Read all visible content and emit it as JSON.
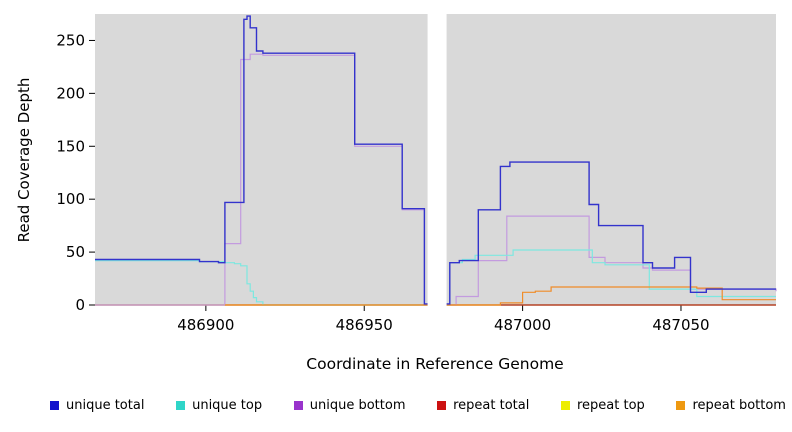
{
  "chart_data": {
    "type": "line",
    "line_style": "step-after",
    "title": "",
    "xlabel": "Coordinate in Reference Genome",
    "ylabel": "Read Coverage Depth",
    "xlim": [
      486865,
      487080
    ],
    "ylim": [
      0,
      275
    ],
    "x_ticks": [
      486900,
      486950,
      487000,
      487050
    ],
    "y_ticks": [
      0,
      50,
      100,
      150,
      200,
      250
    ],
    "panel_color": "#d9d9d9",
    "gap_region": [
      486970,
      486976
    ],
    "grid": false,
    "legend_position": "bottom",
    "draw_order": [
      "repeat top",
      "repeat total",
      "unique bottom",
      "unique top",
      "repeat bottom",
      "unique total"
    ],
    "series": [
      {
        "name": "unique total",
        "line_color": "#3333cc",
        "legend_color": "#1111cc",
        "points": [
          [
            486865,
            43
          ],
          [
            486898,
            41
          ],
          [
            486904,
            40
          ],
          [
            486906,
            97
          ],
          [
            486912,
            270
          ],
          [
            486913,
            273
          ],
          [
            486914,
            262
          ],
          [
            486916,
            240
          ],
          [
            486918,
            238
          ],
          [
            486947,
            152
          ],
          [
            486962,
            91
          ],
          [
            486969,
            1
          ],
          [
            486977,
            40
          ],
          [
            486980,
            42
          ],
          [
            486986,
            90
          ],
          [
            486993,
            131
          ],
          [
            486996,
            135
          ],
          [
            487021,
            95
          ],
          [
            487024,
            75
          ],
          [
            487038,
            40
          ],
          [
            487041,
            35
          ],
          [
            487048,
            45
          ],
          [
            487053,
            12
          ],
          [
            487058,
            15
          ],
          [
            487080,
            15
          ]
        ]
      },
      {
        "name": "unique top",
        "line_color": "#7de8e0",
        "legend_color": "#2fd5c8",
        "points": [
          [
            486865,
            42
          ],
          [
            486898,
            41
          ],
          [
            486906,
            40
          ],
          [
            486909,
            39
          ],
          [
            486911,
            37
          ],
          [
            486913,
            20
          ],
          [
            486914,
            13
          ],
          [
            486915,
            7
          ],
          [
            486916,
            3
          ],
          [
            486918,
            0
          ],
          [
            486977,
            40
          ],
          [
            486981,
            43
          ],
          [
            486985,
            47
          ],
          [
            486997,
            52
          ],
          [
            487022,
            40
          ],
          [
            487026,
            38
          ],
          [
            487040,
            15
          ],
          [
            487055,
            8
          ],
          [
            487080,
            8
          ]
        ]
      },
      {
        "name": "unique bottom",
        "line_color": "#c39bdf",
        "legend_color": "#9933cc",
        "points": [
          [
            486865,
            0
          ],
          [
            486906,
            58
          ],
          [
            486911,
            232
          ],
          [
            486914,
            237
          ],
          [
            486918,
            236
          ],
          [
            486947,
            150
          ],
          [
            486962,
            90
          ],
          [
            486969,
            0
          ],
          [
            486979,
            8
          ],
          [
            486986,
            42
          ],
          [
            486995,
            84
          ],
          [
            487021,
            45
          ],
          [
            487026,
            40
          ],
          [
            487038,
            35
          ],
          [
            487041,
            33
          ],
          [
            487053,
            15
          ],
          [
            487080,
            13
          ]
        ]
      },
      {
        "name": "repeat total",
        "line_color": "#aa2222",
        "legend_color": "#cc1111",
        "points": [
          [
            486865,
            0
          ],
          [
            487080,
            0
          ]
        ]
      },
      {
        "name": "repeat top",
        "line_color": "#e8e800",
        "legend_color": "#eded00",
        "points": [
          [
            486865,
            0
          ],
          [
            487080,
            0
          ]
        ]
      },
      {
        "name": "repeat bottom",
        "line_color": "#f08c28",
        "legend_color": "#ee9911",
        "points": [
          [
            486906,
            0
          ],
          [
            486993,
            2
          ],
          [
            487000,
            12
          ],
          [
            487004,
            13
          ],
          [
            487009,
            17
          ],
          [
            487051,
            17
          ],
          [
            487055,
            16
          ],
          [
            487063,
            5
          ],
          [
            487080,
            5
          ]
        ]
      }
    ]
  }
}
